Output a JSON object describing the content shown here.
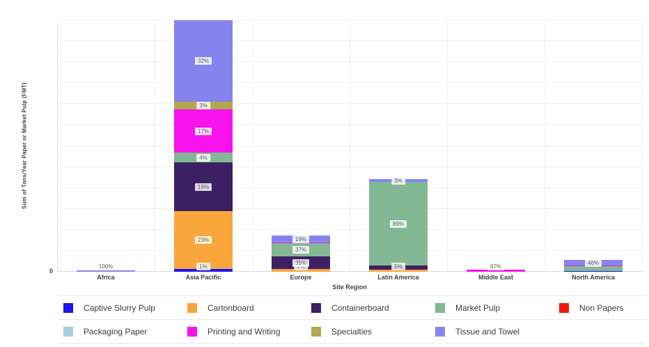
{
  "chart_data": {
    "type": "bar",
    "stacked": true,
    "title": "",
    "xlabel": "Site Region",
    "ylabel": "Sum of Tons/Year Paper or Market Pulp (FMT)",
    "y_axis_ticks": [
      "0"
    ],
    "grid": true,
    "legend_position": "bottom",
    "categories": [
      "Africa",
      "Asia Pacific",
      "Europe",
      "Latin America",
      "Middle East",
      "North America"
    ],
    "products": [
      {
        "label": "Captive Slurry Pulp",
        "color": "#1B15EE"
      },
      {
        "label": "Cartonboard",
        "color": "#F9A63D"
      },
      {
        "label": "Containerboard",
        "color": "#3C2063"
      },
      {
        "label": "Market Pulp",
        "color": "#82B894"
      },
      {
        "label": "Non Papers",
        "color": "#FB1410"
      },
      {
        "label": "Packaging Paper",
        "color": "#A9CBE2"
      },
      {
        "label": "Printing and Writing",
        "color": "#F812EC"
      },
      {
        "label": "Specialties",
        "color": "#B3A84F"
      },
      {
        "label": "Tissue and Towel",
        "color": "#8584EF"
      }
    ],
    "bars": [
      {
        "category": "Africa",
        "height_frac": 0.006,
        "segments": [
          {
            "product": "Tissue and Towel",
            "percent": 100,
            "label": "100%"
          }
        ]
      },
      {
        "category": "Asia Pacific",
        "height_frac": 1.0,
        "segments": [
          {
            "product": "Captive Slurry Pulp",
            "percent": 1,
            "label": "1%"
          },
          {
            "product": "Cartonboard",
            "percent": 23,
            "label": "23%"
          },
          {
            "product": "Containerboard",
            "percent": 19,
            "label": "19%"
          },
          {
            "product": "Market Pulp",
            "percent": 4,
            "label": "4%"
          },
          {
            "product": "Printing and Writing",
            "percent": 17,
            "label": "17%"
          },
          {
            "product": "Specialties",
            "percent": 3,
            "label": "3%"
          },
          {
            "product": "Tissue and Towel",
            "percent": 32,
            "label": "32%"
          }
        ]
      },
      {
        "category": "Europe",
        "height_frac": 0.145,
        "segments": [
          {
            "product": "Cartonboard",
            "percent": 7,
            "label": "7%"
          },
          {
            "product": "Containerboard",
            "percent": 35,
            "label": "35%"
          },
          {
            "product": "Market Pulp",
            "percent": 37,
            "label": "37%"
          },
          {
            "product": "Printing and Writing",
            "percent": 1.5,
            "label": ""
          },
          {
            "product": "Tissue and Towel",
            "percent": 19,
            "label": "19%"
          }
        ]
      },
      {
        "category": "Latin America",
        "height_frac": 0.368,
        "segments": [
          {
            "product": "Cartonboard",
            "percent": 2,
            "label": ""
          },
          {
            "product": "Containerboard",
            "percent": 5,
            "label": "5%"
          },
          {
            "product": "Market Pulp",
            "percent": 89,
            "label": "89%"
          },
          {
            "product": "Tissue and Towel",
            "percent": 3,
            "label": "3%"
          }
        ]
      },
      {
        "category": "Middle East",
        "height_frac": 0.008,
        "segments": [
          {
            "product": "Printing and Writing",
            "percent": 67,
            "label": "67%"
          }
        ]
      },
      {
        "category": "North America",
        "height_frac": 0.047,
        "segments": [
          {
            "product": "Captive Slurry Pulp",
            "percent": 5,
            "label": ""
          },
          {
            "product": "Market Pulp",
            "percent": 44,
            "label": ""
          },
          {
            "product": "Printing and Writing",
            "percent": 2,
            "label": ""
          },
          {
            "product": "Tissue and Towel",
            "percent": 46,
            "label": "46%"
          }
        ]
      }
    ]
  }
}
